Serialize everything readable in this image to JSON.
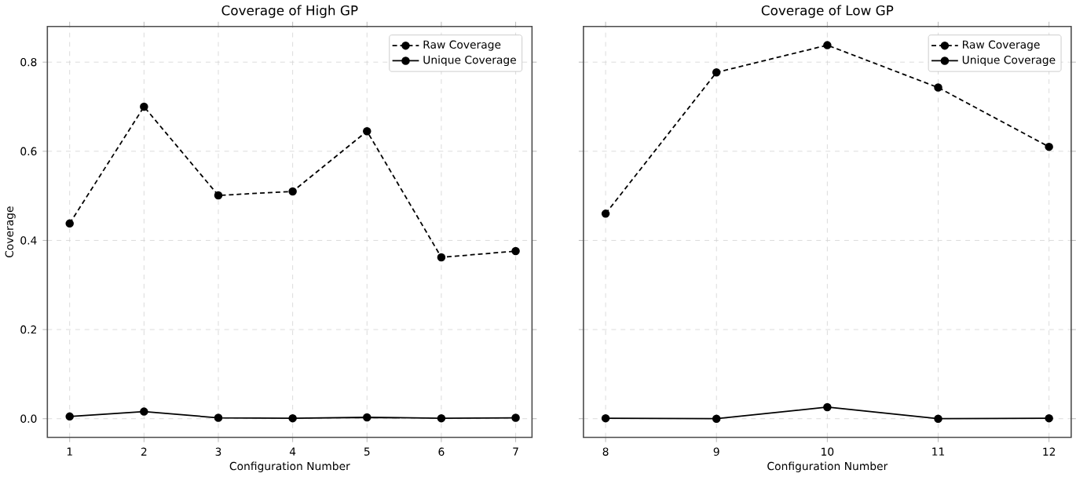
{
  "chart_data": [
    {
      "type": "line",
      "title": "Coverage of High GP",
      "xlabel": "Configuration Number",
      "ylabel": "Coverage",
      "x": [
        1,
        2,
        3,
        4,
        5,
        6,
        7
      ],
      "xlim": [
        0.7,
        7.22
      ],
      "xticks": [
        1,
        2,
        3,
        4,
        5,
        6,
        7
      ],
      "ylim": [
        -0.042,
        0.88
      ],
      "yticks": [
        {
          "value": 0,
          "label": "0.0"
        },
        {
          "value": 0.2,
          "label": "0.2"
        },
        {
          "value": 0.4,
          "label": "0.4"
        },
        {
          "value": 0.6,
          "label": "0.6"
        },
        {
          "value": 0.8,
          "label": "0.8"
        }
      ],
      "grid": true,
      "legend": "top right",
      "marker": "circle",
      "series": [
        {
          "name": "Raw Coverage",
          "color": "#000000",
          "line_style": "dashed",
          "values": [
            0.438,
            0.7,
            0.501,
            0.51,
            0.645,
            0.362,
            0.376
          ]
        },
        {
          "name": "Unique Coverage",
          "color": "#000000",
          "line_style": "solid",
          "values": [
            0.005,
            0.016,
            0.002,
            0.001,
            0.003,
            0.001,
            0.002
          ]
        }
      ]
    },
    {
      "type": "line",
      "title": "Coverage of Low GP",
      "xlabel": "Configuration Number",
      "x": [
        8,
        9,
        10,
        11,
        12
      ],
      "xlim": [
        7.8,
        12.2
      ],
      "xticks": [
        8,
        9,
        10,
        11,
        12
      ],
      "ylim": [
        -0.042,
        0.88
      ],
      "yticks": [
        0.0,
        0.2,
        0.4,
        0.6,
        0.8
      ],
      "tick_labels": "x",
      "grid": true,
      "legend": "top right",
      "marker": "circle",
      "series": [
        {
          "name": "Raw Coverage",
          "color": "#000000",
          "line_style": "dashed",
          "values": [
            0.46,
            0.777,
            0.838,
            0.743,
            0.61
          ]
        },
        {
          "name": "Unique Coverage",
          "color": "#000000",
          "line_style": "solid",
          "values": [
            0.001,
            0.0,
            0.026,
            0.0,
            0.001
          ]
        }
      ]
    }
  ]
}
